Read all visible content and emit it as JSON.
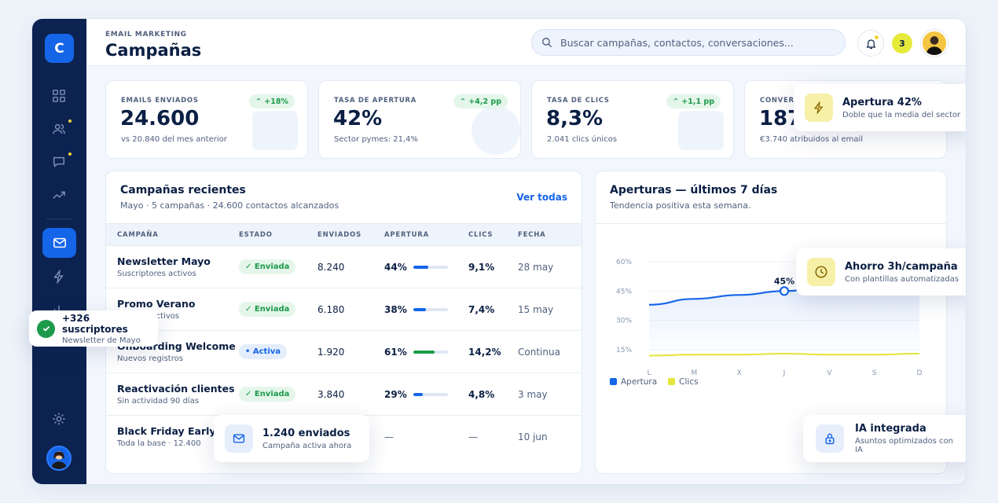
{
  "header": {
    "eyebrow": "EMAIL MARKETING",
    "title": "Campañas",
    "search_placeholder": "Buscar campañas, contactos, conversaciones...",
    "notification_count": "3"
  },
  "sidebar": {
    "logo": "C",
    "items": [
      "dashboard",
      "contacts",
      "conversations",
      "analytics",
      "email-marketing",
      "automations",
      "reports",
      "settings"
    ]
  },
  "kpis": [
    {
      "label": "EMAILS ENVIADOS",
      "value": "24.600",
      "sub": "vs 20.840 del mes anterior",
      "badge": "+18%"
    },
    {
      "label": "TASA DE APERTURA",
      "value": "42%",
      "sub": "Sector pymes: 21,4%",
      "badge": "+4,2 pp"
    },
    {
      "label": "TASA DE CLICS",
      "value": "8,3%",
      "sub": "2.041 clics únicos",
      "badge": "+1,1 pp"
    },
    {
      "label": "CONVERS",
      "value": "187",
      "sub": "€3.740 atribuidos al email",
      "badge": ""
    }
  ],
  "campaigns": {
    "title": "Campañas recientes",
    "subtitle": "Mayo · 5 campañas · 24.600 contactos alcanzados",
    "link": "Ver todas",
    "columns": [
      "CAMPAÑA",
      "ESTADO",
      "ENVIADOS",
      "APERTURA",
      "CLICS",
      "FECHA"
    ],
    "rows": [
      {
        "name": "Newsletter Mayo",
        "desc": "Suscriptores activos",
        "status": "✓ Enviada",
        "sent": "8.240",
        "open": "44%",
        "open_pct": 0.44,
        "clicks": "9,1%",
        "date": "28 may"
      },
      {
        "name": "Promo Verano",
        "desc": "Clientes activos",
        "status": "✓ Enviada",
        "sent": "6.180",
        "open": "38%",
        "open_pct": 0.38,
        "clicks": "7,4%",
        "date": "15 may"
      },
      {
        "name": "Onboarding Welcome",
        "desc": "Nuevos registros",
        "status": "• Activa",
        "sent": "1.920",
        "open": "61%",
        "open_pct": 0.61,
        "clicks": "14,2%",
        "date": "Continua"
      },
      {
        "name": "Reactivación clientes",
        "desc": "Sin actividad 90 días",
        "status": "✓ Enviada",
        "sent": "3.840",
        "open": "29%",
        "open_pct": 0.29,
        "clicks": "4,8%",
        "date": "3 may"
      },
      {
        "name": "Black Friday Early",
        "desc": "Toda la base · 12.400",
        "status": "",
        "sent": "",
        "open": "—",
        "open_pct": 0,
        "clicks": "—",
        "date": "10 jun"
      }
    ]
  },
  "chart": {
    "title": "Aperturas — últimos 7 días",
    "subtitle": "Tendencia positiva esta semana.",
    "highlight_label": "45%"
  },
  "chart_data": {
    "type": "line",
    "x": [
      "L",
      "M",
      "X",
      "J",
      "V",
      "S",
      "D"
    ],
    "yticks": [
      "60%",
      "45%",
      "30%",
      "15%"
    ],
    "ylim": [
      0,
      60
    ],
    "series": [
      {
        "name": "Apertura",
        "values": [
          38,
          41,
          43,
          45,
          47,
          49,
          52
        ],
        "color": "#1565e8"
      },
      {
        "name": "Clics",
        "values": [
          12,
          12.5,
          12.5,
          13,
          12.5,
          12.5,
          13
        ],
        "color": "#e4e43a"
      }
    ],
    "legend": "bottom-left",
    "grid": true
  },
  "floats": {
    "apertura": {
      "title": "Apertura 42%",
      "sub": "Doble que la media del sector"
    },
    "ahorro": {
      "title": "Ahorro 3h/campaña",
      "sub": "Con plantillas automatizadas"
    },
    "ia": {
      "title": "IA integrada",
      "sub": "Asuntos optimizados con IA"
    },
    "enviados": {
      "title": "1.240 enviados",
      "sub": "Campaña activa ahora"
    },
    "suscriptores": {
      "title": "+326 suscriptores",
      "sub": "Newsletter de Mayo"
    }
  },
  "colors": {
    "accent": "#1565e8",
    "sidebar": "#0c2250",
    "success": "#1c9a4a",
    "yellow": "#e4e43a"
  }
}
